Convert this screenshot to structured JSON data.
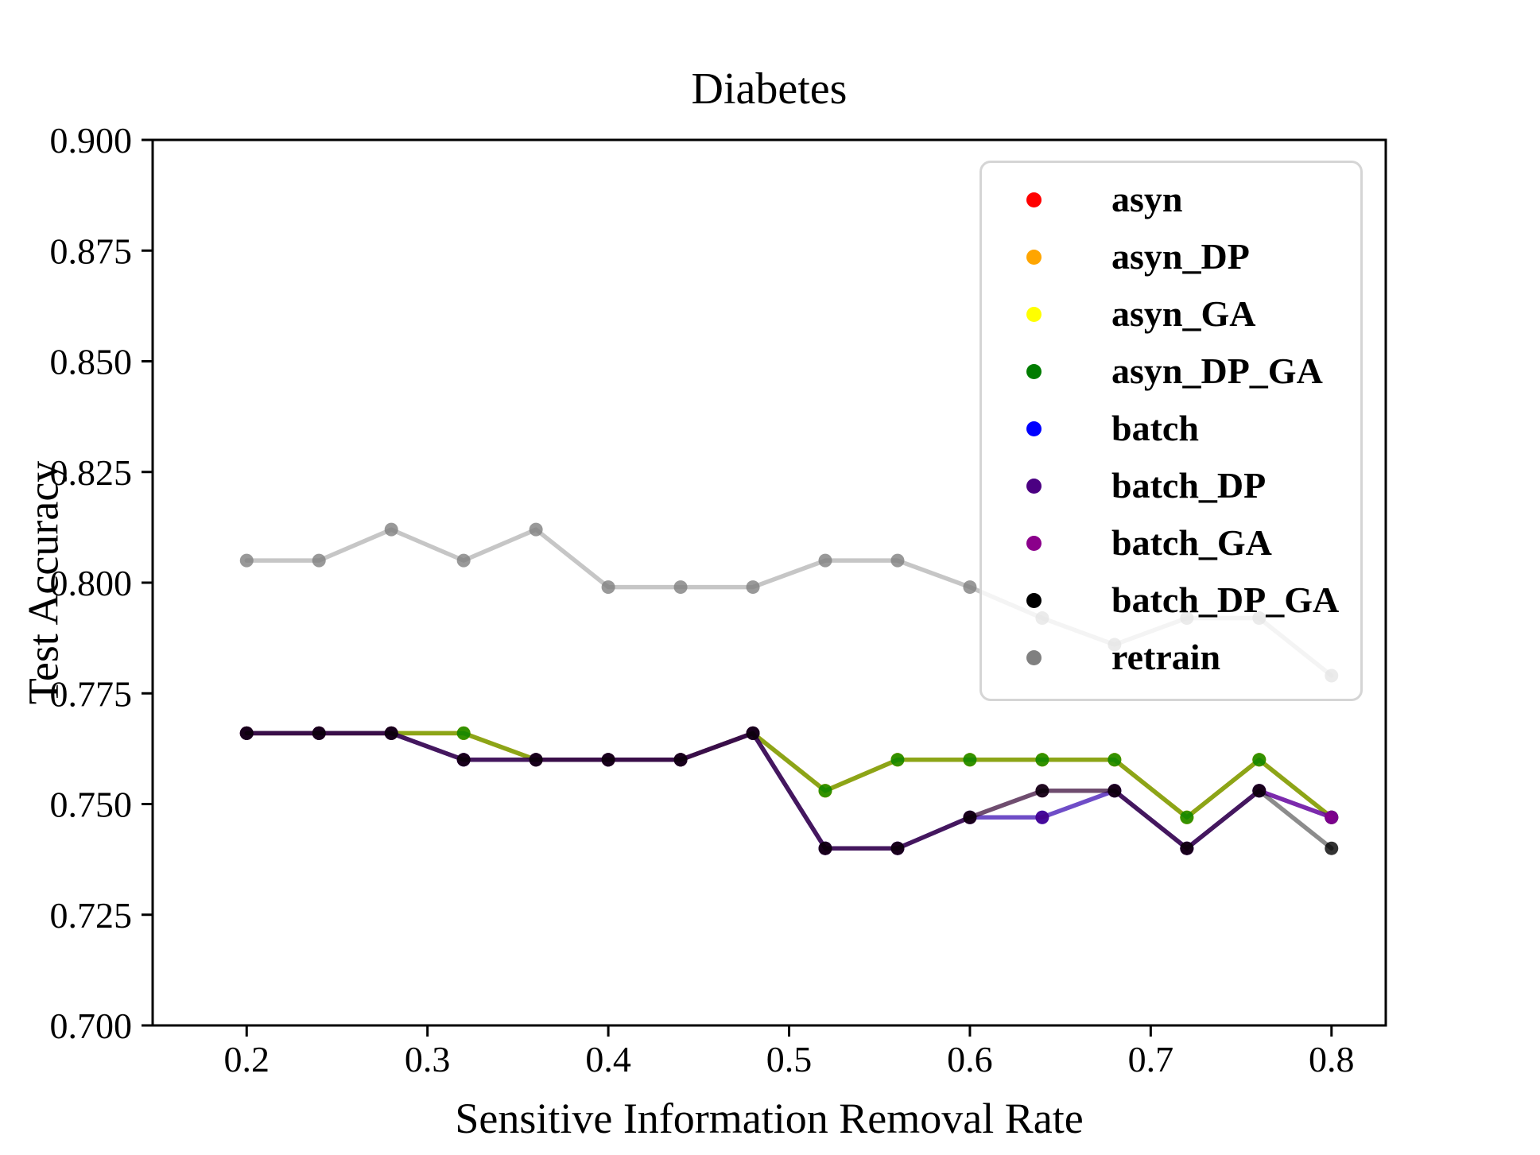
{
  "figure": {
    "title": "Diabetes",
    "x_axis_label": "Sensitive Information Removal Rate",
    "y_axis_label": "Test Accuracy"
  },
  "axes": {
    "x_tick_labels": [
      "0.2",
      "0.3",
      "0.4",
      "0.5",
      "0.6",
      "0.7",
      "0.8"
    ],
    "y_tick_labels": [
      "0.700",
      "0.725",
      "0.750",
      "0.775",
      "0.800",
      "0.825",
      "0.850",
      "0.875",
      "0.900"
    ]
  },
  "legend": {
    "position": "upper right",
    "items": [
      {
        "label": "asyn",
        "color": "#ff0000"
      },
      {
        "label": "asyn_DP",
        "color": "#ffa500"
      },
      {
        "label": "asyn_GA",
        "color": "#ffff00"
      },
      {
        "label": "asyn_DP_GA",
        "color": "#007c00"
      },
      {
        "label": "batch",
        "color": "#0000ff"
      },
      {
        "label": "batch_DP",
        "color": "#4b0082"
      },
      {
        "label": "batch_GA",
        "color": "#8b008b"
      },
      {
        "label": "batch_DP_GA",
        "color": "#000000"
      },
      {
        "label": "retrain",
        "color": "#808080"
      }
    ]
  },
  "chart_data": {
    "type": "line",
    "title": "Diabetes",
    "xlabel": "Sensitive Information Removal Rate",
    "ylabel": "Test Accuracy",
    "xlim": [
      0.148,
      0.83
    ],
    "ylim": [
      0.7,
      0.9
    ],
    "x_ticks": [
      0.2,
      0.3,
      0.4,
      0.5,
      0.6,
      0.7,
      0.8
    ],
    "y_ticks": [
      0.7,
      0.725,
      0.75,
      0.775,
      0.8,
      0.825,
      0.85,
      0.875,
      0.9
    ],
    "grid": false,
    "legend_position": "upper right",
    "x": [
      0.2,
      0.24,
      0.28,
      0.32,
      0.36,
      0.4,
      0.44,
      0.48,
      0.52,
      0.56,
      0.6,
      0.64,
      0.68,
      0.72,
      0.76,
      0.8
    ],
    "series": [
      {
        "name": "asyn",
        "color": "#ff0000",
        "values": [
          0.766,
          0.766,
          0.766,
          0.766,
          0.76,
          0.76,
          0.76,
          0.766,
          0.753,
          0.76,
          0.76,
          0.76,
          0.76,
          0.747,
          0.76,
          0.747
        ]
      },
      {
        "name": "asyn_DP",
        "color": "#ffa500",
        "values": [
          0.766,
          0.766,
          0.766,
          0.766,
          0.76,
          0.76,
          0.76,
          0.766,
          0.753,
          0.76,
          0.76,
          0.76,
          0.76,
          0.747,
          0.76,
          0.747
        ]
      },
      {
        "name": "asyn_GA",
        "color": "#ffff00",
        "values": [
          0.766,
          0.766,
          0.766,
          0.766,
          0.76,
          0.76,
          0.76,
          0.766,
          0.753,
          0.76,
          0.76,
          0.76,
          0.76,
          0.747,
          0.76,
          0.747
        ]
      },
      {
        "name": "asyn_DP_GA",
        "color": "#007c00",
        "values": [
          0.766,
          0.766,
          0.766,
          0.766,
          0.76,
          0.76,
          0.76,
          0.766,
          0.753,
          0.76,
          0.76,
          0.76,
          0.76,
          0.747,
          0.76,
          0.747
        ]
      },
      {
        "name": "batch",
        "color": "#0000ff",
        "values": [
          0.766,
          0.766,
          0.766,
          0.76,
          0.76,
          0.76,
          0.76,
          0.766,
          0.74,
          0.74,
          0.747,
          0.747,
          0.753,
          0.74,
          0.753,
          0.747
        ]
      },
      {
        "name": "batch_DP",
        "color": "#4b0082",
        "values": [
          0.766,
          0.766,
          0.766,
          0.76,
          0.76,
          0.76,
          0.76,
          0.766,
          0.74,
          0.74,
          0.747,
          0.747,
          0.753,
          0.74,
          0.753,
          0.747
        ]
      },
      {
        "name": "batch_GA",
        "color": "#8b008b",
        "values": [
          0.766,
          0.766,
          0.766,
          0.76,
          0.76,
          0.76,
          0.76,
          0.766,
          0.74,
          0.74,
          0.747,
          0.753,
          0.753,
          0.74,
          0.753,
          0.747
        ]
      },
      {
        "name": "batch_DP_GA",
        "color": "#000000",
        "values": [
          0.766,
          0.766,
          0.766,
          0.76,
          0.76,
          0.76,
          0.76,
          0.766,
          0.74,
          0.74,
          0.747,
          0.753,
          0.753,
          0.74,
          0.753,
          0.74
        ]
      },
      {
        "name": "retrain",
        "color": "#808080",
        "values": [
          0.805,
          0.805,
          0.812,
          0.805,
          0.812,
          0.799,
          0.799,
          0.799,
          0.805,
          0.805,
          0.799,
          0.792,
          0.786,
          0.792,
          0.792,
          0.779
        ]
      }
    ],
    "style": {
      "line_opacity": 0.45,
      "marker_opacity": 0.8,
      "line_width": 5.5,
      "marker_radius": 8.5,
      "frame_color": "#000000",
      "legend_border_color": "#d5d5d5"
    }
  }
}
